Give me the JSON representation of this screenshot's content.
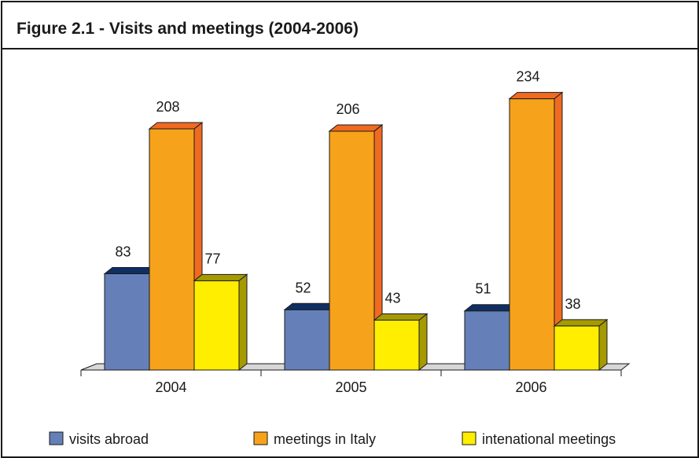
{
  "chart_data": {
    "type": "bar",
    "title": "Figure 2.1 - Visits and meetings (2004-2006)",
    "categories": [
      "2004",
      "2005",
      "2006"
    ],
    "series": [
      {
        "name": "visits abroad",
        "values": [
          83,
          52,
          51
        ],
        "color": "#6580b8",
        "top_color": "#0f2f63",
        "side_color": "#33467a"
      },
      {
        "name": "meetings in Italy",
        "values": [
          208,
          206,
          234
        ],
        "color": "#f6a21a",
        "top_color": "#f06a21",
        "side_color": "#f06a21"
      },
      {
        "name": "intenational meetings",
        "values": [
          77,
          43,
          38
        ],
        "color": "#ffee00",
        "top_color": "#a59a00",
        "side_color": "#a59a00"
      }
    ],
    "ylim": [
      0,
      250
    ],
    "legend_position": "bottom",
    "grid": false
  }
}
